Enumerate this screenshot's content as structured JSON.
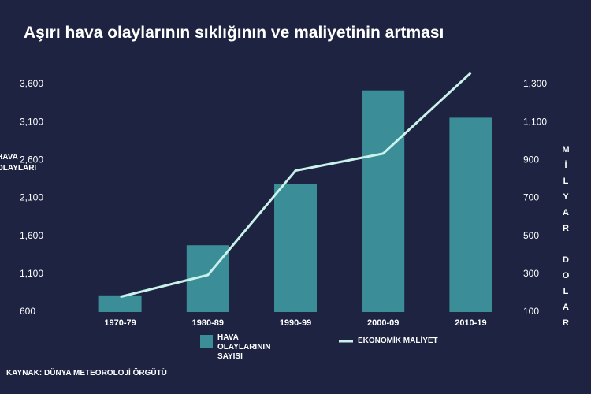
{
  "chart_data": {
    "type": "bar_line",
    "title": "Aşırı hava olaylarının sıklığının ve maliyetinin artması",
    "y_label": "HAVA\nOLAYLARI",
    "y2_label": "MİLYAR DOLAR",
    "source": "KAYNAK: DÜNYA METEOROLOJİ ÖRGÜTÜ",
    "categories": [
      "1970-79",
      "1980-89",
      "1990-99",
      "2000-09",
      "2010-19"
    ],
    "series": [
      {
        "name": "HAVA OLAYLARININ SAYISI",
        "type": "bar",
        "axis": "y",
        "color": "#3b8e97",
        "values": [
          820,
          1480,
          2290,
          3520,
          3160
        ]
      },
      {
        "name": "EKONOMİK MALİYET",
        "type": "line",
        "axis": "y2",
        "color": "#c9f2ea",
        "values": [
          180,
          295,
          845,
          935,
          1360
        ]
      }
    ],
    "ylim": [
      600,
      3600
    ],
    "yticks": [
      600,
      {
        "value": 1100,
        "label": "1,100"
      },
      {
        "value": 1600,
        "label": "1,600"
      },
      {
        "value": 2100,
        "label": "2,100"
      },
      {
        "value": 2600,
        "label": "2,600"
      },
      {
        "value": 3100,
        "label": "3,100"
      },
      {
        "value": 3600,
        "label": "3,600"
      }
    ],
    "y2lim": [
      100,
      1300
    ],
    "y2ticks": [
      100,
      300,
      500,
      700,
      900,
      {
        "value": 1100,
        "label": "1,100"
      },
      {
        "value": 1300,
        "label": "1,300"
      }
    ]
  }
}
